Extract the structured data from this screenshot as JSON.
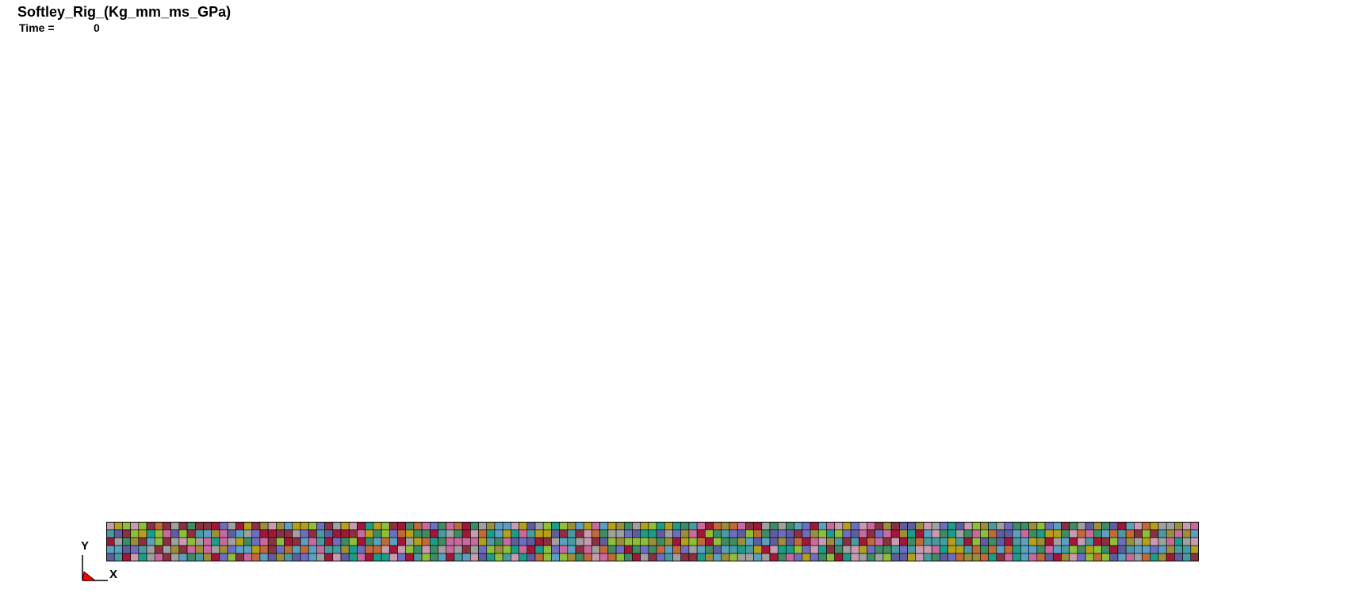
{
  "viewer": {
    "title": "Softley_Rig_(Kg_mm_ms_GPa)",
    "time_label": "Time =",
    "time_value": "0"
  },
  "mesh": {
    "columns": 135,
    "rows": 5,
    "edge_color": "#000000",
    "palette": [
      "#9c8f3c",
      "#c9558e",
      "#5ba0c0",
      "#8e7a4e",
      "#3f8b63",
      "#d04a6d",
      "#8fbf3a",
      "#2e6da8",
      "#b5a01c",
      "#3dc49b",
      "#a01838",
      "#6b4a2a",
      "#4a9aa0",
      "#e07a28",
      "#6e6ec0",
      "#2c7a4a",
      "#c99bb0",
      "#7bb26b",
      "#a0a0a0",
      "#d6c24a",
      "#1e9c8a",
      "#a83a60",
      "#5e5e9e",
      "#3a6e3a",
      "#c86a9e",
      "#4b8bd0",
      "#c06a3a",
      "#5cd0a8",
      "#8a3040",
      "#9e9e40"
    ]
  },
  "triad": {
    "y_label": "Y",
    "x_label": "X",
    "axis_color": "#000000",
    "marker_color": "#ff0000"
  }
}
